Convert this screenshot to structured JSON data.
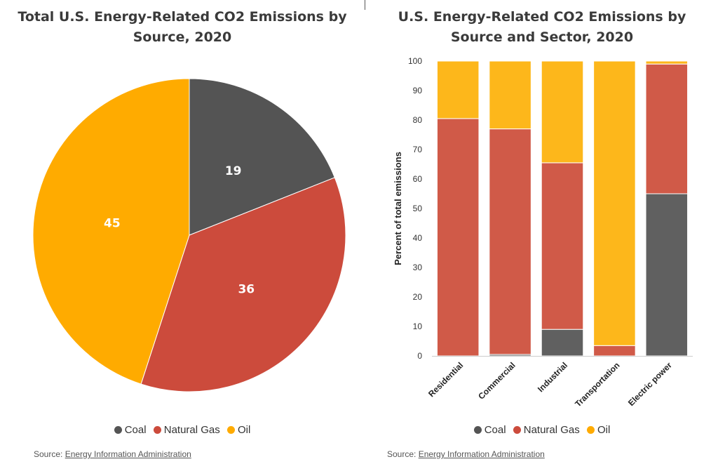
{
  "colors": {
    "coal": "#545454",
    "natural_gas": "#cc4b3c",
    "oil": "#ffab00"
  },
  "legend": [
    {
      "label": "Coal",
      "color": "#545454"
    },
    {
      "label": "Natural Gas",
      "color": "#cc4b3c"
    },
    {
      "label": "Oil",
      "color": "#ffab00"
    }
  ],
  "source": {
    "prefix": "Source: ",
    "link_text": "Energy Information Administration"
  },
  "chart_data": [
    {
      "type": "pie",
      "title": "Total U.S. Energy-Related CO2 Emissions by\nSource, 2020",
      "categories": [
        "Coal",
        "Natural Gas",
        "Oil"
      ],
      "values": [
        19,
        36,
        45
      ],
      "data_labels": [
        "19",
        "36",
        "45"
      ],
      "colors": [
        "#545454",
        "#cc4b3c",
        "#ffab00"
      ],
      "legend": "bottom-center"
    },
    {
      "type": "bar",
      "stacked": true,
      "title": "U.S. Energy-Related CO2 Emissions by\nSource and Sector, 2020",
      "categories": [
        "Residential",
        "Commercial",
        "Industrial",
        "Transportation",
        "Electric power"
      ],
      "series": [
        {
          "name": "Coal",
          "color": "#606060",
          "values": [
            0,
            0.5,
            9,
            0,
            55
          ]
        },
        {
          "name": "Natural Gas",
          "color": "#d05a48",
          "values": [
            80.5,
            76.5,
            56.5,
            3.5,
            44
          ]
        },
        {
          "name": "Oil",
          "color": "#fdb71b",
          "values": [
            19.5,
            23,
            34.5,
            96.5,
            1
          ]
        }
      ],
      "xlabel": "",
      "ylabel": "Percent of total emissions",
      "ylim": [
        0,
        100
      ],
      "yticks": [
        "0",
        "10",
        "20",
        "30",
        "40",
        "50",
        "60",
        "70",
        "80",
        "90",
        "100"
      ],
      "grid": false,
      "legend": "bottom-center"
    }
  ]
}
